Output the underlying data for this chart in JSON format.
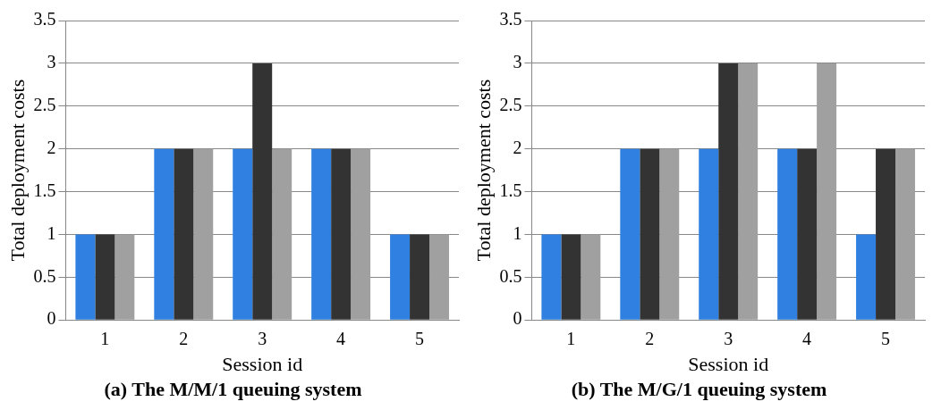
{
  "chart_data": [
    {
      "type": "bar",
      "title": "(a) The M/M/1 queuing system",
      "xlabel": "Session id",
      "ylabel": "Total deployment costs",
      "categories": [
        "1",
        "2",
        "3",
        "4",
        "5"
      ],
      "series": [
        {
          "color": "#2f80e0",
          "values": [
            1,
            2,
            2,
            2,
            1
          ]
        },
        {
          "color": "#333333",
          "values": [
            1,
            2,
            3,
            2,
            1
          ]
        },
        {
          "color": "#a0a0a0",
          "values": [
            1,
            2,
            2,
            2,
            1
          ]
        }
      ],
      "ylim": [
        0,
        3.5
      ],
      "yticks": [
        0,
        0.5,
        1,
        1.5,
        2,
        2.5,
        3,
        3.5
      ],
      "grid": "y"
    },
    {
      "type": "bar",
      "title": "(b) The M/G/1 queuing system",
      "xlabel": "Session id",
      "ylabel": "Total deployment costs",
      "categories": [
        "1",
        "2",
        "3",
        "4",
        "5"
      ],
      "series": [
        {
          "color": "#2f80e0",
          "values": [
            1,
            2,
            2,
            2,
            1
          ]
        },
        {
          "color": "#333333",
          "values": [
            1,
            2,
            3,
            2,
            2
          ]
        },
        {
          "color": "#a0a0a0",
          "values": [
            1,
            2,
            3,
            3,
            2
          ]
        }
      ],
      "ylim": [
        0,
        3.5
      ],
      "yticks": [
        0,
        0.5,
        1,
        1.5,
        2,
        2.5,
        3,
        3.5
      ],
      "grid": "y"
    }
  ]
}
